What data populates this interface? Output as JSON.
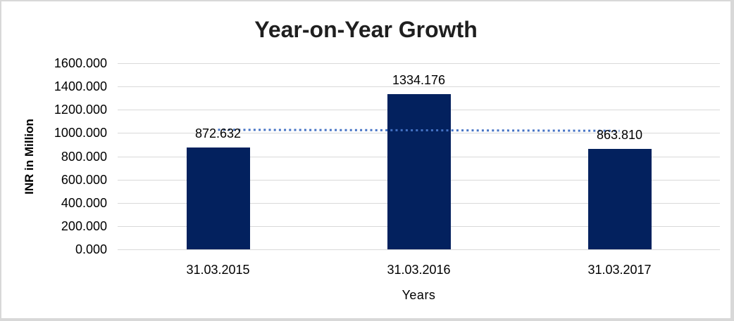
{
  "frame": {
    "background": "#FFFFFF",
    "border_color": "#D8D8D8"
  },
  "chart_data": {
    "type": "bar",
    "title": "Year-on-Year Growth",
    "xlabel": "Years",
    "ylabel": "INR in Million",
    "categories": [
      "31.03.2015",
      "31.03.2016",
      "31.03.2017"
    ],
    "values": [
      872.632,
      1334.176,
      863.81
    ],
    "data_labels": [
      "872.632",
      "1334.176",
      "863.810"
    ],
    "ylim": [
      0,
      1600
    ],
    "ytick_step": 200,
    "yticks": [
      1600,
      1400,
      1200,
      1000,
      800,
      600,
      400,
      200,
      0
    ],
    "ytick_labels": [
      "1600.000",
      "1400.000",
      "1200.000",
      "1000.000",
      "800.000",
      "600.000",
      "400.000",
      "200.000",
      "0.000"
    ],
    "grid": true,
    "legend": "none",
    "colors": {
      "bar": "#03215E",
      "gridline": "#D9D9D9",
      "trendline": "#4472C4",
      "title_text": "#1F1F1F",
      "axis_text": "#000000"
    },
    "trendline": {
      "style": "dotted",
      "color": "#4472C4",
      "start_value": 1028,
      "end_value": 1019
    }
  }
}
